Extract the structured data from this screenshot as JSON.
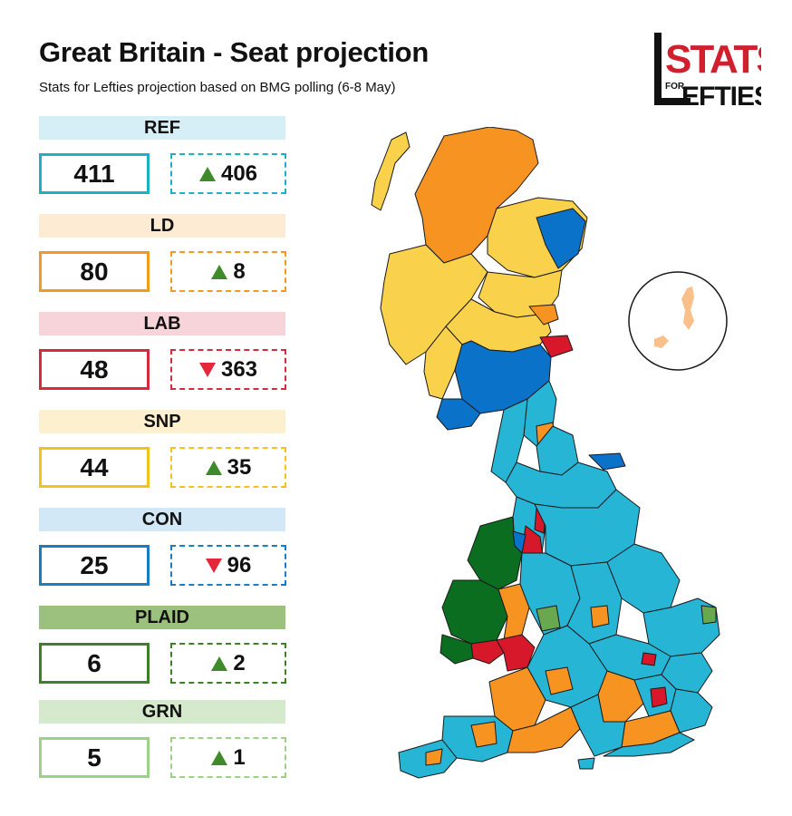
{
  "title": "Great Britain - Seat projection",
  "subtitle": "Stats for Lefties projection based on BMG polling (6-8 May)",
  "logo": {
    "line1": "STATS",
    "line2": "FOR",
    "line3": "LEFTIES",
    "color": "#d0202e"
  },
  "parties": [
    {
      "label": "REF",
      "seats": "411",
      "change": "406",
      "direction": "up",
      "color": "#1fb0c9",
      "light": "#d6eff6"
    },
    {
      "label": "LD",
      "seats": "80",
      "change": "8",
      "direction": "up",
      "color": "#f39a22",
      "light": "#fdebd3"
    },
    {
      "label": "LAB",
      "seats": "48",
      "change": "363",
      "direction": "down",
      "color": "#d42b3f",
      "light": "#f7d4da"
    },
    {
      "label": "SNP",
      "seats": "44",
      "change": "35",
      "direction": "up",
      "color": "#f2c21e",
      "light": "#fdf0cf"
    },
    {
      "label": "CON",
      "seats": "25",
      "change": "96",
      "direction": "down",
      "color": "#1a7cc7",
      "light": "#d3e8f6"
    },
    {
      "label": "PLAID",
      "seats": "6",
      "change": "2",
      "direction": "up",
      "color": "#3f7f2a",
      "light": "#9cc07d"
    },
    {
      "label": "GRN",
      "seats": "5",
      "change": "1",
      "direction": "up",
      "color": "#9fd08a",
      "light": "#d5e9cc"
    }
  ],
  "map_colors": {
    "ref": "#27b5d6",
    "ld": "#f79321",
    "lab": "#d6182a",
    "snp": "#fad14b",
    "con": "#0a72c9",
    "plaid": "#0b6d1f",
    "grn": "#6aa84f",
    "border": "#1a1a1a"
  }
}
